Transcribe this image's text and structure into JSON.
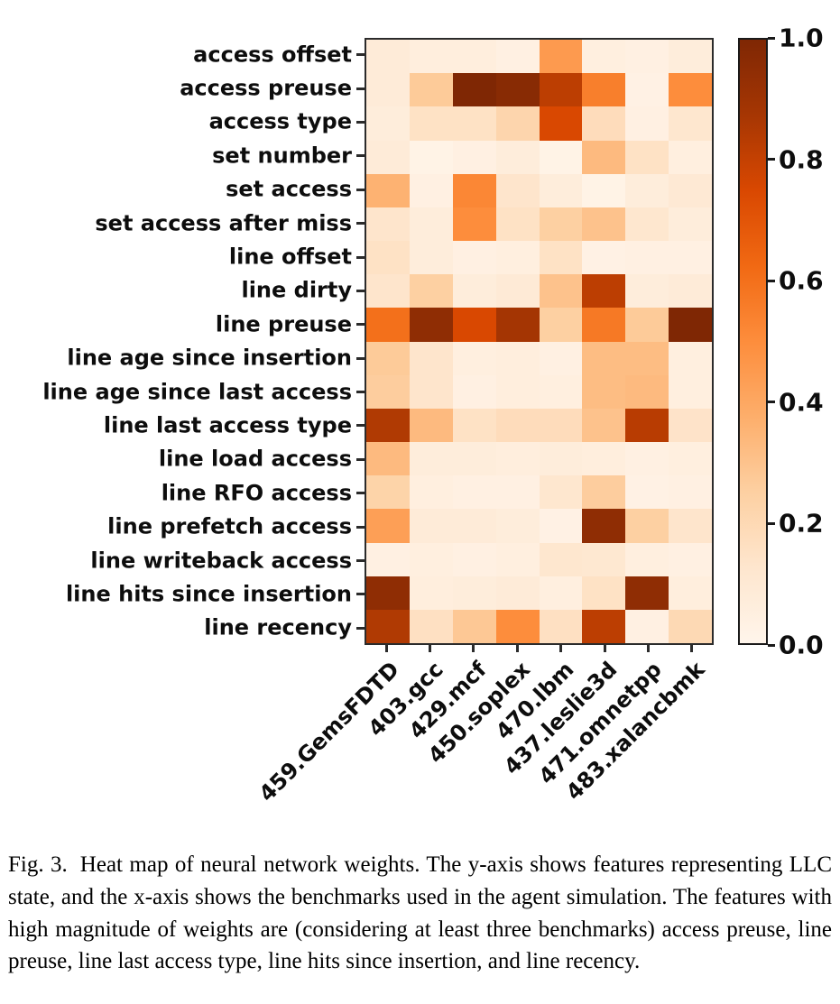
{
  "figure": {
    "caption_label": "Fig. 3.",
    "caption_text": "Heat map of neural network weights. The y-axis shows features representing LLC state, and the x-axis shows the benchmarks used in the agent simulation. The features with high magnitude of weights are (considering at least three benchmarks) access preuse, line preuse, line last access type, line hits since insertion, and line recency."
  },
  "chart_data": {
    "type": "heatmap",
    "title": "",
    "xlabel": "",
    "ylabel": "",
    "grid": false,
    "legend_position": "right-colorbar",
    "colormap": "Oranges",
    "colormap_stops": [
      {
        "t": 0.0,
        "c": "#fff5eb"
      },
      {
        "t": 0.125,
        "c": "#fee6ce"
      },
      {
        "t": 0.25,
        "c": "#fdd0a2"
      },
      {
        "t": 0.375,
        "c": "#fdae6b"
      },
      {
        "t": 0.5,
        "c": "#fd8d3c"
      },
      {
        "t": 0.625,
        "c": "#f16913"
      },
      {
        "t": 0.75,
        "c": "#d94801"
      },
      {
        "t": 0.875,
        "c": "#a63603"
      },
      {
        "t": 1.0,
        "c": "#7f2704"
      }
    ],
    "rows": [
      "access offset",
      "access preuse",
      "access type",
      "set number",
      "set access",
      "set access after miss",
      "line offset",
      "line dirty",
      "line preuse",
      "line age since insertion",
      "line age since last access",
      "line last access type",
      "line load access",
      "line RFO access",
      "line prefetch access",
      "line writeback access",
      "line hits since insertion",
      "line recency"
    ],
    "columns": [
      "459.GemsFDTD",
      "403.gcc",
      "429.mcf",
      "450.soplex",
      "470.lbm",
      "437.leslie3d",
      "471.omnetpp",
      "483.xalancbmk"
    ],
    "values": [
      [
        0.08,
        0.06,
        0.06,
        0.04,
        0.45,
        0.05,
        0.04,
        0.07
      ],
      [
        0.08,
        0.27,
        1.0,
        0.97,
        0.82,
        0.55,
        0.03,
        0.5
      ],
      [
        0.07,
        0.15,
        0.15,
        0.22,
        0.75,
        0.18,
        0.04,
        0.12
      ],
      [
        0.08,
        0.02,
        0.04,
        0.07,
        0.02,
        0.33,
        0.15,
        0.05
      ],
      [
        0.36,
        0.04,
        0.52,
        0.13,
        0.07,
        0.02,
        0.07,
        0.1
      ],
      [
        0.13,
        0.07,
        0.5,
        0.15,
        0.25,
        0.3,
        0.12,
        0.07
      ],
      [
        0.15,
        0.07,
        0.04,
        0.05,
        0.15,
        0.03,
        0.04,
        0.04
      ],
      [
        0.13,
        0.25,
        0.07,
        0.09,
        0.3,
        0.82,
        0.07,
        0.08
      ],
      [
        0.6,
        0.95,
        0.75,
        0.88,
        0.25,
        0.57,
        0.27,
        1.0
      ],
      [
        0.27,
        0.13,
        0.05,
        0.06,
        0.04,
        0.32,
        0.32,
        0.05
      ],
      [
        0.26,
        0.13,
        0.04,
        0.06,
        0.05,
        0.32,
        0.33,
        0.05
      ],
      [
        0.85,
        0.33,
        0.15,
        0.18,
        0.18,
        0.3,
        0.83,
        0.14
      ],
      [
        0.33,
        0.07,
        0.07,
        0.06,
        0.07,
        0.06,
        0.04,
        0.05
      ],
      [
        0.23,
        0.05,
        0.04,
        0.04,
        0.12,
        0.26,
        0.03,
        0.04
      ],
      [
        0.43,
        0.08,
        0.08,
        0.07,
        0.03,
        0.95,
        0.25,
        0.13
      ],
      [
        0.04,
        0.05,
        0.04,
        0.05,
        0.12,
        0.11,
        0.05,
        0.04
      ],
      [
        0.95,
        0.06,
        0.07,
        0.08,
        0.05,
        0.15,
        0.95,
        0.06
      ],
      [
        0.85,
        0.16,
        0.28,
        0.5,
        0.16,
        0.82,
        0.04,
        0.2
      ]
    ],
    "colorbar": {
      "min": 0.0,
      "max": 1.0,
      "tick_labels": [
        "1.0",
        "0.8",
        "0.6",
        "0.4",
        "0.2",
        "0.0"
      ]
    }
  }
}
